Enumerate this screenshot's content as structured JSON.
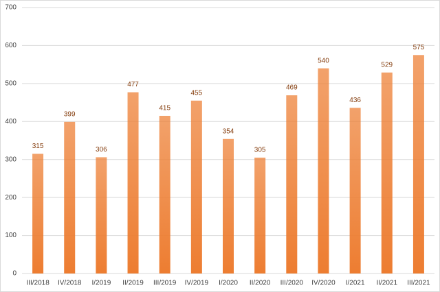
{
  "chart_data": {
    "type": "bar",
    "categories": [
      "III/2018",
      "IV/2018",
      "I/2019",
      "II/2019",
      "III/2019",
      "IV/2019",
      "I/2020",
      "II/2020",
      "III/2020",
      "IV/2020",
      "I/2021",
      "II/2021",
      "III/2021"
    ],
    "values": [
      315,
      399,
      306,
      477,
      415,
      455,
      354,
      305,
      469,
      540,
      436,
      529,
      575
    ],
    "color": "#ed7d31",
    "label_color": "#843c0c",
    "ylim": [
      0,
      700
    ],
    "yticks": [
      0,
      100,
      200,
      300,
      400,
      500,
      600,
      700
    ],
    "grid": true
  }
}
